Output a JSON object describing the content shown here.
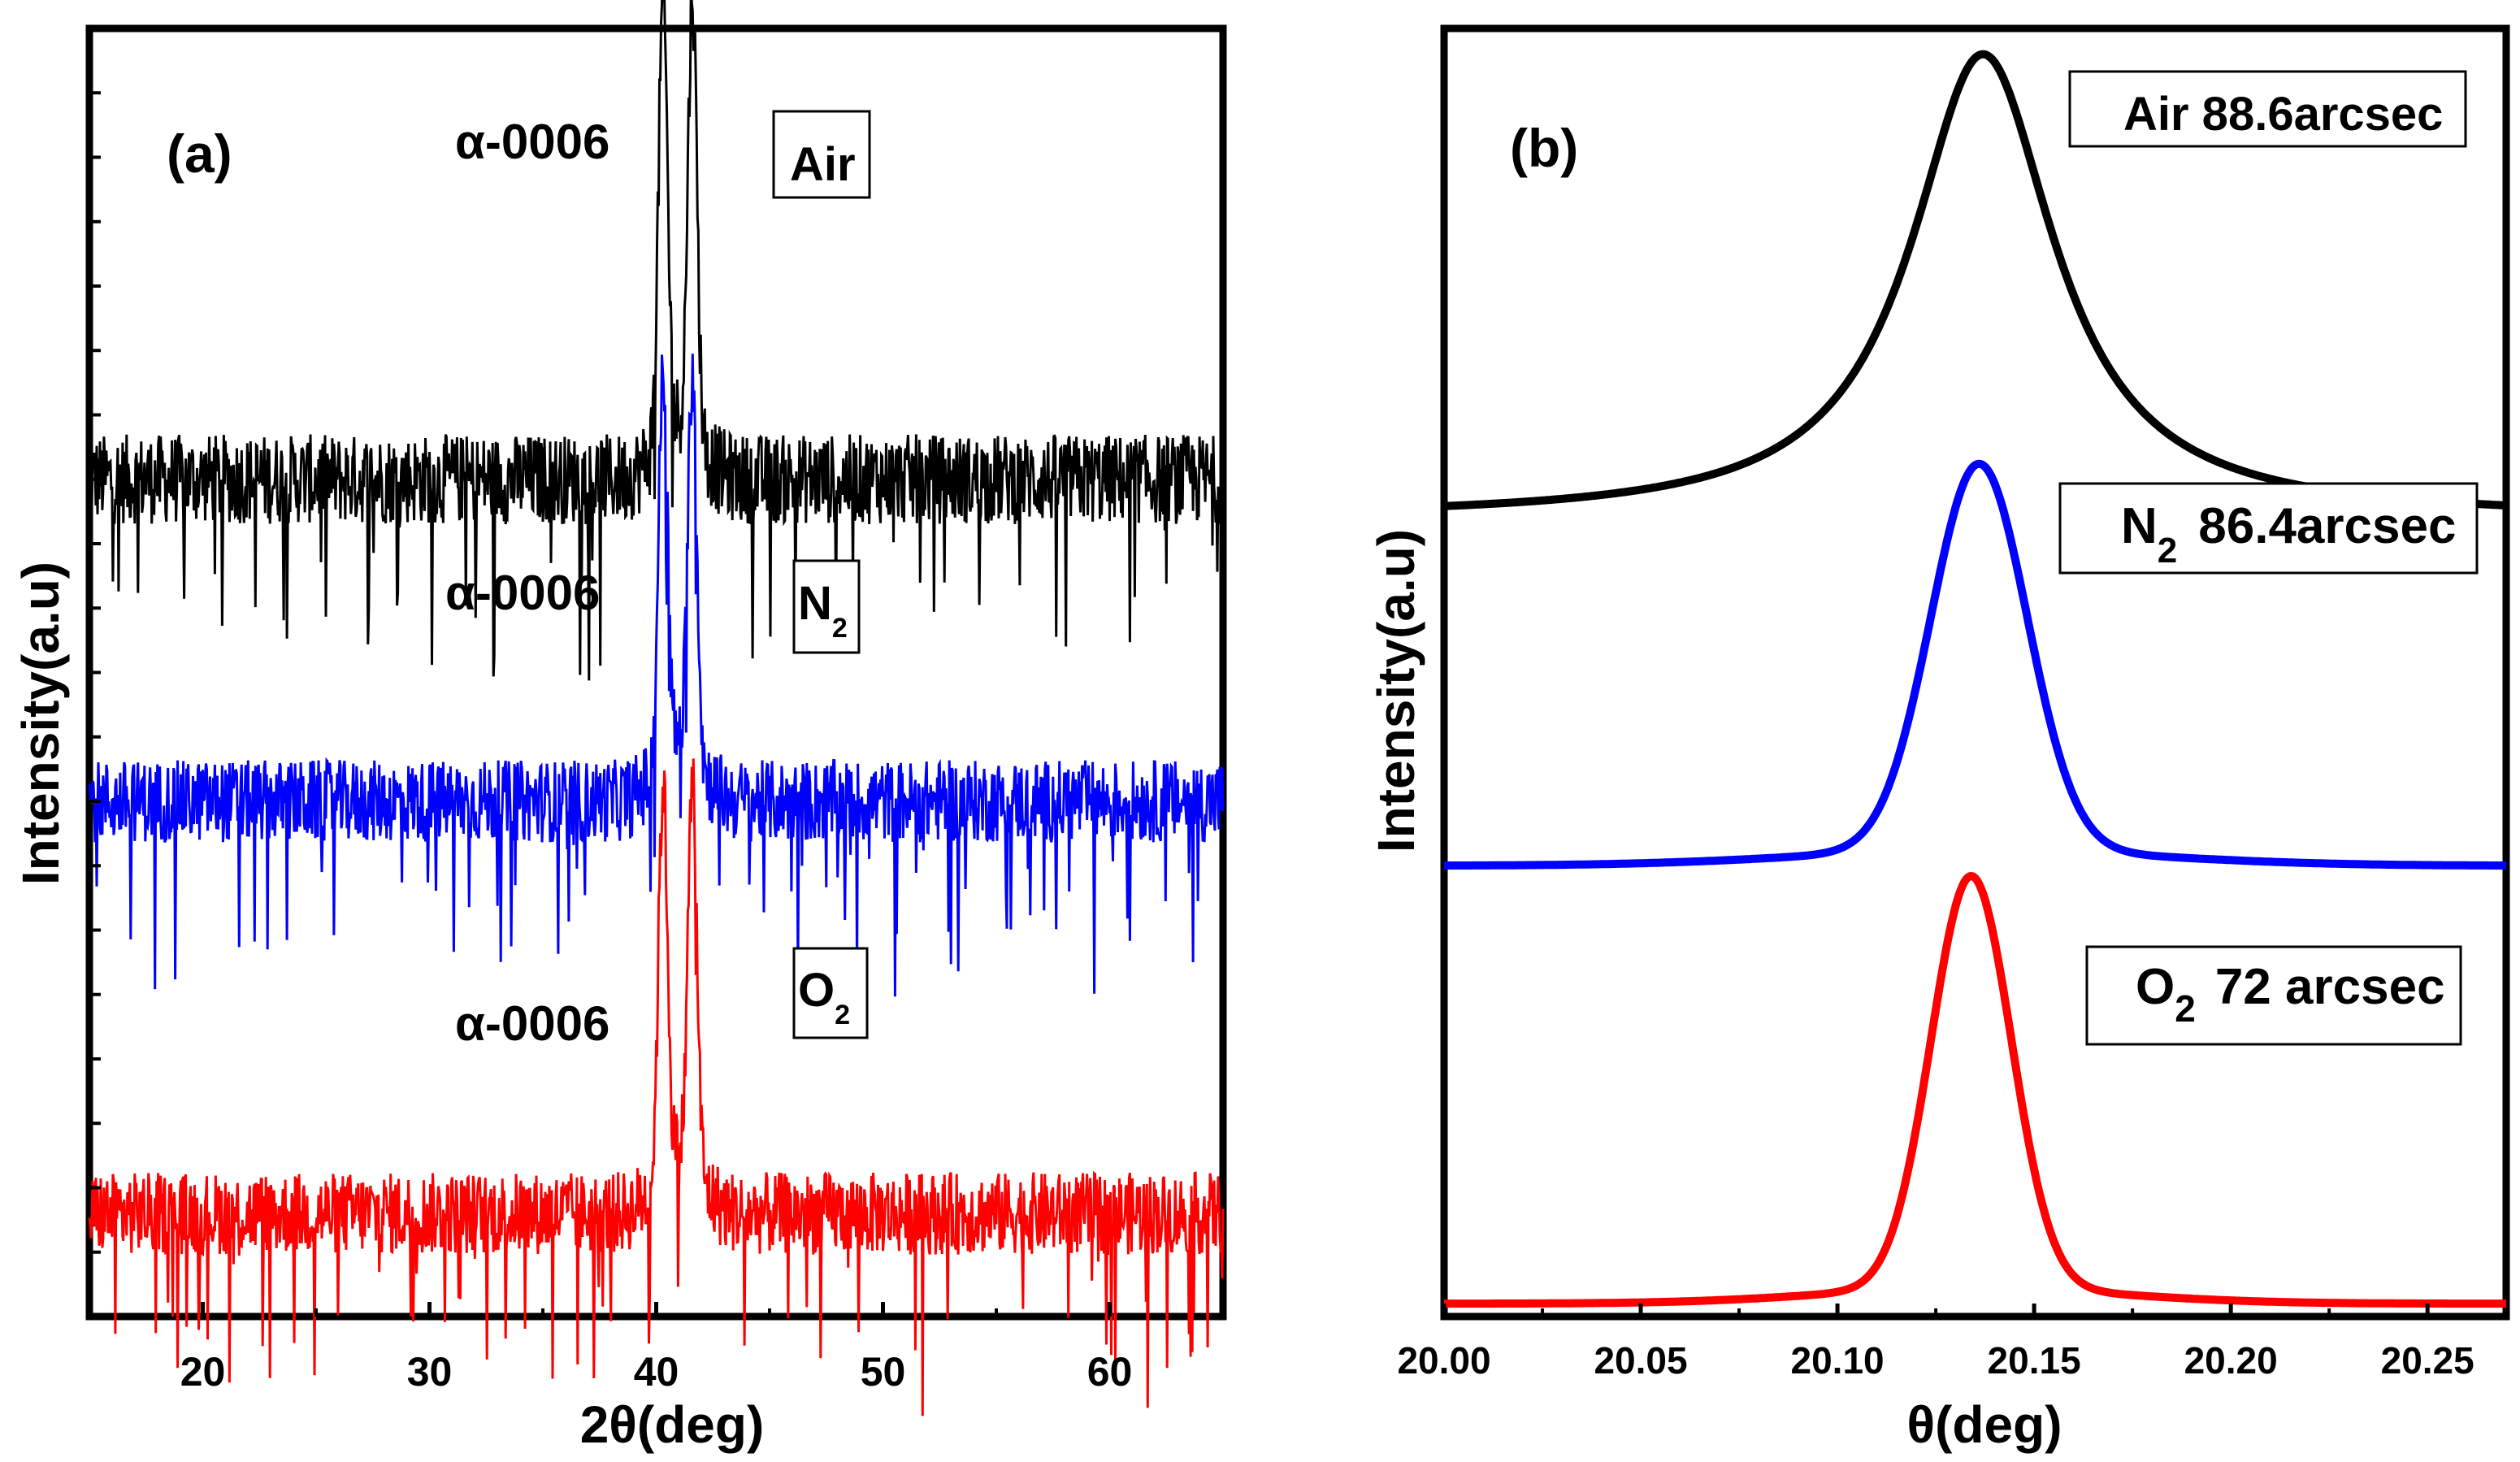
{
  "chart_data": [
    {
      "type": "line",
      "panel_label": "(a)",
      "xlabel": "2θ(deg)",
      "ylabel": "Intensity(a.u)",
      "xlim": [
        15,
        65
      ],
      "ylim": [
        0,
        100
      ],
      "xticks": [
        20,
        30,
        40,
        50,
        60
      ],
      "xtick_labels": [
        "20",
        "30",
        "40",
        "50",
        "60"
      ],
      "peak_label": "α-0006",
      "series": [
        {
          "name": "Air",
          "sub": "",
          "color": "#000000",
          "baseline": 65,
          "noise": 3.5,
          "peaks": [
            40.3,
            41.6
          ],
          "peak_height": 34,
          "legend_main": "Air",
          "legend_sub": ""
        },
        {
          "name": "N2",
          "sub": "2",
          "color": "#0000ff",
          "baseline": 40,
          "noise": 3.2,
          "peaks": [
            40.3,
            41.6
          ],
          "peak_height": 30,
          "legend_main": "N",
          "legend_sub": "2"
        },
        {
          "name": "O2",
          "sub": "2",
          "color": "#ff0000",
          "baseline": 8,
          "noise": 3.2,
          "peaks": [
            40.3,
            41.6
          ],
          "peak_height": 30,
          "legend_main": "O",
          "legend_sub": "2"
        }
      ]
    },
    {
      "type": "line",
      "panel_label": "(b)",
      "xlabel": "θ(deg)",
      "ylabel": "Intensity(a.u)",
      "xlim": [
        20.0,
        20.27
      ],
      "ylim": [
        0,
        100
      ],
      "xticks": [
        20.0,
        20.05,
        20.1,
        20.15,
        20.2,
        20.25
      ],
      "xtick_labels": [
        "20.00",
        "20.05",
        "20.10",
        "20.15",
        "20.20",
        "20.25"
      ],
      "series": [
        {
          "name": "Air",
          "color": "#000000",
          "center": 20.137,
          "width_fwhm_arcsec": 88.6,
          "baseline": 67,
          "peak_top": 98,
          "shape": "lorentz",
          "legend_main": "Air 88.6arcsec",
          "legend_sub": "",
          "legend_rest": ""
        },
        {
          "name": "N2",
          "color": "#0000ff",
          "center": 20.136,
          "width_fwhm_arcsec": 86.4,
          "baseline": 35,
          "peak_top": 65,
          "shape": "gauss",
          "legend_main": "N",
          "legend_sub": "2",
          "legend_rest": "86.4arcsec"
        },
        {
          "name": "O2",
          "color": "#ff0000",
          "center": 20.134,
          "width_fwhm_arcsec": 72,
          "baseline": 1,
          "peak_top": 33,
          "shape": "gauss",
          "legend_main": "O",
          "legend_sub": "2",
          "legend_rest": "72 arcsec"
        }
      ]
    }
  ]
}
